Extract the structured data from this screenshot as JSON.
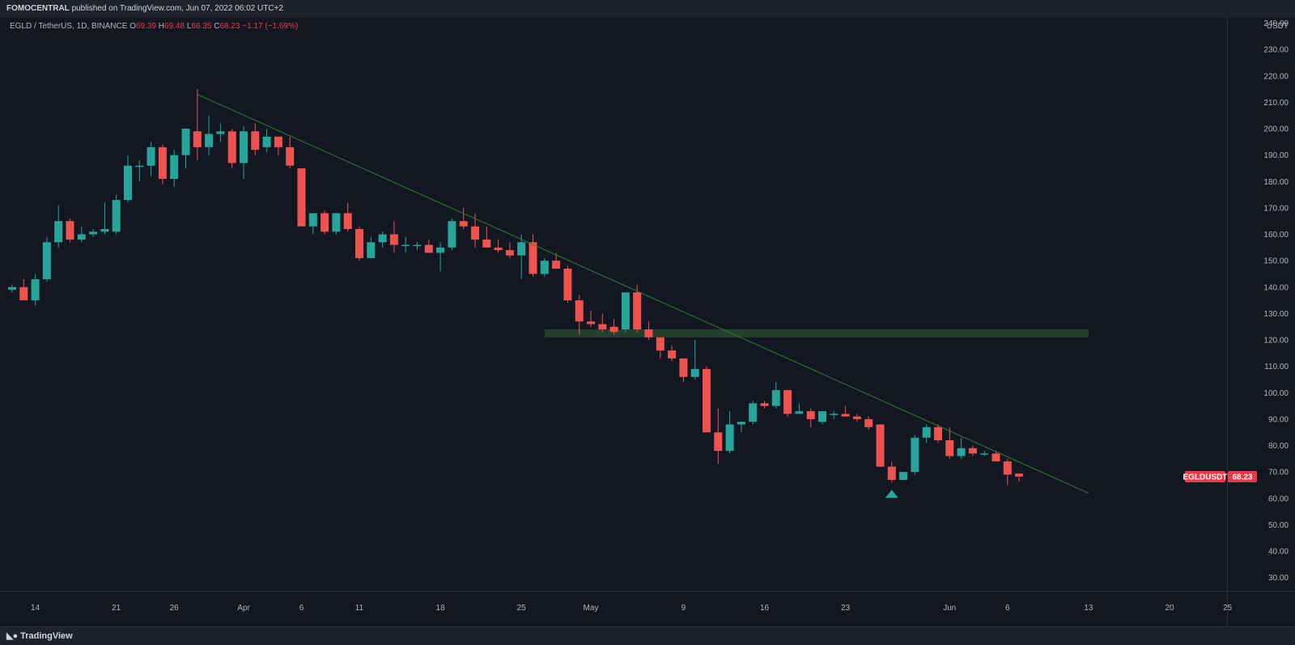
{
  "header": {
    "publisher_name": "FOMOCENTRAL",
    "publisher_rest": "published on TradingView.com, Jun 07, 2022 06:02 UTC+2"
  },
  "legend": {
    "symbol": "EGLD / TetherUS, 1D, BINANCE",
    "open_label": "O",
    "open": "69.39",
    "high_label": "H",
    "high": "69.48",
    "low_label": "L",
    "low": "66.35",
    "close_label": "C",
    "close": "68.23",
    "change": "−1.17 (−1.69%)"
  },
  "price_axis": {
    "currency": "USDT",
    "last_symbol": "EGLDUSDT",
    "last_price": "68.23"
  },
  "footer": {
    "brand": "TradingView",
    "logo_icon": "tradingview-logo-icon"
  },
  "colors": {
    "up": "#26a69a",
    "down": "#ef5350",
    "trendline": "#2e7d32",
    "zone": "#243f2b",
    "bg": "#131722"
  },
  "chart_data": {
    "type": "candlestick",
    "title": "EGLD / TetherUS, 1D, BINANCE",
    "ylabel": "USDT",
    "ylim": [
      25,
      242
    ],
    "yticks": [
      30,
      40,
      50,
      60,
      70,
      80,
      90,
      100,
      110,
      120,
      130,
      140,
      150,
      160,
      170,
      180,
      190,
      200,
      210,
      220,
      230,
      240
    ],
    "ytick_labels": [
      "30.00",
      "40.00",
      "50.00",
      "60.00",
      "70.00",
      "80.00",
      "90.00",
      "100.00",
      "110.00",
      "120.00",
      "130.00",
      "140.00",
      "150.00",
      "160.00",
      "170.00",
      "180.00",
      "190.00",
      "200.00",
      "210.00",
      "220.00",
      "230.00",
      "240.00"
    ],
    "xlim": [
      "2022-03-12",
      "2022-06-27"
    ],
    "xtick_labels": [
      {
        "date": "2022-03-14",
        "label": "14"
      },
      {
        "date": "2022-03-21",
        "label": "21"
      },
      {
        "date": "2022-03-26",
        "label": "26"
      },
      {
        "date": "2022-04-01",
        "label": "Apr"
      },
      {
        "date": "2022-04-06",
        "label": "6"
      },
      {
        "date": "2022-04-11",
        "label": "11"
      },
      {
        "date": "2022-04-18",
        "label": "18"
      },
      {
        "date": "2022-04-25",
        "label": "25"
      },
      {
        "date": "2022-05-01",
        "label": "May"
      },
      {
        "date": "2022-05-09",
        "label": "9"
      },
      {
        "date": "2022-05-16",
        "label": "16"
      },
      {
        "date": "2022-05-23",
        "label": "23"
      },
      {
        "date": "2022-06-01",
        "label": "Jun"
      },
      {
        "date": "2022-06-06",
        "label": "6"
      },
      {
        "date": "2022-06-13",
        "label": "13"
      },
      {
        "date": "2022-06-20",
        "label": "20"
      },
      {
        "date": "2022-06-25",
        "label": "25"
      }
    ],
    "candles": [
      {
        "date": "2022-03-12",
        "o": 139,
        "h": 141,
        "l": 138,
        "c": 140
      },
      {
        "date": "2022-03-13",
        "o": 140,
        "h": 143,
        "l": 135,
        "c": 135
      },
      {
        "date": "2022-03-14",
        "o": 135,
        "h": 145,
        "l": 133,
        "c": 143
      },
      {
        "date": "2022-03-15",
        "o": 143,
        "h": 159,
        "l": 142,
        "c": 157
      },
      {
        "date": "2022-03-16",
        "o": 157,
        "h": 171,
        "l": 155,
        "c": 165
      },
      {
        "date": "2022-03-17",
        "o": 165,
        "h": 166,
        "l": 157,
        "c": 158
      },
      {
        "date": "2022-03-18",
        "o": 158,
        "h": 163,
        "l": 157,
        "c": 160
      },
      {
        "date": "2022-03-19",
        "o": 160,
        "h": 162,
        "l": 159,
        "c": 161
      },
      {
        "date": "2022-03-20",
        "o": 161,
        "h": 172,
        "l": 160,
        "c": 162
      },
      {
        "date": "2022-03-21",
        "o": 161,
        "h": 175,
        "l": 160,
        "c": 173
      },
      {
        "date": "2022-03-22",
        "o": 173,
        "h": 190,
        "l": 172,
        "c": 186
      },
      {
        "date": "2022-03-23",
        "o": 186,
        "h": 188,
        "l": 180,
        "c": 186
      },
      {
        "date": "2022-03-24",
        "o": 186,
        "h": 195,
        "l": 182,
        "c": 193
      },
      {
        "date": "2022-03-25",
        "o": 193,
        "h": 194,
        "l": 179,
        "c": 181
      },
      {
        "date": "2022-03-26",
        "o": 181,
        "h": 192,
        "l": 178,
        "c": 190
      },
      {
        "date": "2022-03-27",
        "o": 190,
        "h": 200,
        "l": 185,
        "c": 200
      },
      {
        "date": "2022-03-28",
        "o": 199,
        "h": 215,
        "l": 188,
        "c": 193
      },
      {
        "date": "2022-03-29",
        "o": 193,
        "h": 205,
        "l": 190,
        "c": 198
      },
      {
        "date": "2022-03-30",
        "o": 198,
        "h": 202,
        "l": 195,
        "c": 199
      },
      {
        "date": "2022-03-31",
        "o": 199,
        "h": 200,
        "l": 185,
        "c": 187
      },
      {
        "date": "2022-04-01",
        "o": 187,
        "h": 201,
        "l": 181,
        "c": 199
      },
      {
        "date": "2022-04-02",
        "o": 199,
        "h": 202,
        "l": 190,
        "c": 192
      },
      {
        "date": "2022-04-03",
        "o": 193,
        "h": 200,
        "l": 191,
        "c": 197
      },
      {
        "date": "2022-04-04",
        "o": 197,
        "h": 197,
        "l": 190,
        "c": 193
      },
      {
        "date": "2022-04-05",
        "o": 193,
        "h": 197,
        "l": 185,
        "c": 186
      },
      {
        "date": "2022-04-06",
        "o": 185,
        "h": 185,
        "l": 163,
        "c": 163
      },
      {
        "date": "2022-04-07",
        "o": 163,
        "h": 168,
        "l": 160,
        "c": 168
      },
      {
        "date": "2022-04-08",
        "o": 168,
        "h": 169,
        "l": 160,
        "c": 161
      },
      {
        "date": "2022-04-09",
        "o": 161,
        "h": 168,
        "l": 160,
        "c": 168
      },
      {
        "date": "2022-04-10",
        "o": 168,
        "h": 172,
        "l": 161,
        "c": 162
      },
      {
        "date": "2022-04-11",
        "o": 162,
        "h": 163,
        "l": 150,
        "c": 151
      },
      {
        "date": "2022-04-12",
        "o": 151,
        "h": 159,
        "l": 151,
        "c": 157
      },
      {
        "date": "2022-04-13",
        "o": 157,
        "h": 161,
        "l": 155,
        "c": 160
      },
      {
        "date": "2022-04-14",
        "o": 160,
        "h": 165,
        "l": 153,
        "c": 156
      },
      {
        "date": "2022-04-15",
        "o": 156,
        "h": 159,
        "l": 153,
        "c": 156
      },
      {
        "date": "2022-04-16",
        "o": 156,
        "h": 157,
        "l": 154,
        "c": 156
      },
      {
        "date": "2022-04-17",
        "o": 156,
        "h": 158,
        "l": 153,
        "c": 153
      },
      {
        "date": "2022-04-18",
        "o": 153,
        "h": 157,
        "l": 146,
        "c": 155
      },
      {
        "date": "2022-04-19",
        "o": 155,
        "h": 166,
        "l": 154,
        "c": 165
      },
      {
        "date": "2022-04-20",
        "o": 165,
        "h": 170,
        "l": 162,
        "c": 163
      },
      {
        "date": "2022-04-21",
        "o": 163,
        "h": 168,
        "l": 155,
        "c": 158
      },
      {
        "date": "2022-04-22",
        "o": 158,
        "h": 163,
        "l": 155,
        "c": 155
      },
      {
        "date": "2022-04-23",
        "o": 155,
        "h": 158,
        "l": 153,
        "c": 154
      },
      {
        "date": "2022-04-24",
        "o": 154,
        "h": 157,
        "l": 151,
        "c": 152
      },
      {
        "date": "2022-04-25",
        "o": 152,
        "h": 160,
        "l": 143,
        "c": 157
      },
      {
        "date": "2022-04-26",
        "o": 157,
        "h": 160,
        "l": 144,
        "c": 145
      },
      {
        "date": "2022-04-27",
        "o": 145,
        "h": 151,
        "l": 144,
        "c": 150
      },
      {
        "date": "2022-04-28",
        "o": 150,
        "h": 153,
        "l": 147,
        "c": 147
      },
      {
        "date": "2022-04-29",
        "o": 147,
        "h": 148,
        "l": 134,
        "c": 135
      },
      {
        "date": "2022-04-30",
        "o": 135,
        "h": 137,
        "l": 122,
        "c": 127
      },
      {
        "date": "2022-05-01",
        "o": 127,
        "h": 131,
        "l": 125,
        "c": 126
      },
      {
        "date": "2022-05-02",
        "o": 126,
        "h": 130,
        "l": 123,
        "c": 124
      },
      {
        "date": "2022-05-03",
        "o": 125,
        "h": 128,
        "l": 122,
        "c": 123
      },
      {
        "date": "2022-05-04",
        "o": 124,
        "h": 138,
        "l": 123,
        "c": 138
      },
      {
        "date": "2022-05-05",
        "o": 138,
        "h": 141,
        "l": 123,
        "c": 124
      },
      {
        "date": "2022-05-06",
        "o": 124,
        "h": 127,
        "l": 120,
        "c": 121
      },
      {
        "date": "2022-05-07",
        "o": 121,
        "h": 121,
        "l": 113,
        "c": 116
      },
      {
        "date": "2022-05-08",
        "o": 116,
        "h": 118,
        "l": 112,
        "c": 113
      },
      {
        "date": "2022-05-09",
        "o": 113,
        "h": 113,
        "l": 104,
        "c": 106
      },
      {
        "date": "2022-05-10",
        "o": 106,
        "h": 120,
        "l": 105,
        "c": 109
      },
      {
        "date": "2022-05-11",
        "o": 109,
        "h": 110,
        "l": 85,
        "c": 85
      },
      {
        "date": "2022-05-12",
        "o": 85,
        "h": 94,
        "l": 73,
        "c": 78
      },
      {
        "date": "2022-05-13",
        "o": 78,
        "h": 93,
        "l": 77,
        "c": 88
      },
      {
        "date": "2022-05-14",
        "o": 88,
        "h": 89,
        "l": 85,
        "c": 89
      },
      {
        "date": "2022-05-15",
        "o": 89,
        "h": 97,
        "l": 88,
        "c": 96
      },
      {
        "date": "2022-05-16",
        "o": 96,
        "h": 97,
        "l": 94,
        "c": 95
      },
      {
        "date": "2022-05-17",
        "o": 95,
        "h": 104,
        "l": 94,
        "c": 101
      },
      {
        "date": "2022-05-18",
        "o": 101,
        "h": 101,
        "l": 91,
        "c": 92
      },
      {
        "date": "2022-05-19",
        "o": 92,
        "h": 96,
        "l": 92,
        "c": 93
      },
      {
        "date": "2022-05-20",
        "o": 93,
        "h": 94,
        "l": 87,
        "c": 90
      },
      {
        "date": "2022-05-21",
        "o": 89,
        "h": 93,
        "l": 88,
        "c": 93
      },
      {
        "date": "2022-05-22",
        "o": 92,
        "h": 93,
        "l": 90,
        "c": 92
      },
      {
        "date": "2022-05-23",
        "o": 92,
        "h": 95,
        "l": 91,
        "c": 91
      },
      {
        "date": "2022-05-24",
        "o": 91,
        "h": 92,
        "l": 89,
        "c": 90
      },
      {
        "date": "2022-05-25",
        "o": 90,
        "h": 91,
        "l": 86,
        "c": 87
      },
      {
        "date": "2022-05-26",
        "o": 88,
        "h": 88,
        "l": 72,
        "c": 72
      },
      {
        "date": "2022-05-27",
        "o": 72,
        "h": 74,
        "l": 66,
        "c": 67
      },
      {
        "date": "2022-05-28",
        "o": 67,
        "h": 70,
        "l": 67,
        "c": 70
      },
      {
        "date": "2022-05-29",
        "o": 70,
        "h": 84,
        "l": 69,
        "c": 83
      },
      {
        "date": "2022-05-30",
        "o": 83,
        "h": 88,
        "l": 81,
        "c": 87
      },
      {
        "date": "2022-05-31",
        "o": 87,
        "h": 88,
        "l": 81,
        "c": 82
      },
      {
        "date": "2022-06-01",
        "o": 82,
        "h": 87,
        "l": 75,
        "c": 76
      },
      {
        "date": "2022-06-02",
        "o": 76,
        "h": 83,
        "l": 75,
        "c": 79
      },
      {
        "date": "2022-06-03",
        "o": 79,
        "h": 80,
        "l": 76,
        "c": 77
      },
      {
        "date": "2022-06-04",
        "o": 77,
        "h": 78,
        "l": 76,
        "c": 77
      },
      {
        "date": "2022-06-05",
        "o": 77,
        "h": 78,
        "l": 74,
        "c": 74
      },
      {
        "date": "2022-06-06",
        "o": 74,
        "h": 75,
        "l": 65,
        "c": 69
      },
      {
        "date": "2022-06-07",
        "o": 69.39,
        "h": 69.48,
        "l": 66.35,
        "c": 68.23
      }
    ],
    "trendline": {
      "from": {
        "date": "2022-03-28",
        "price": 213
      },
      "to": {
        "date": "2022-06-13",
        "price": 62
      }
    },
    "zone": {
      "from_date": "2022-04-27",
      "to_date": "2022-06-13",
      "price_low": 121,
      "price_high": 124
    },
    "marker": {
      "date": "2022-05-27",
      "shape": "triangle-up",
      "price": 62
    }
  }
}
